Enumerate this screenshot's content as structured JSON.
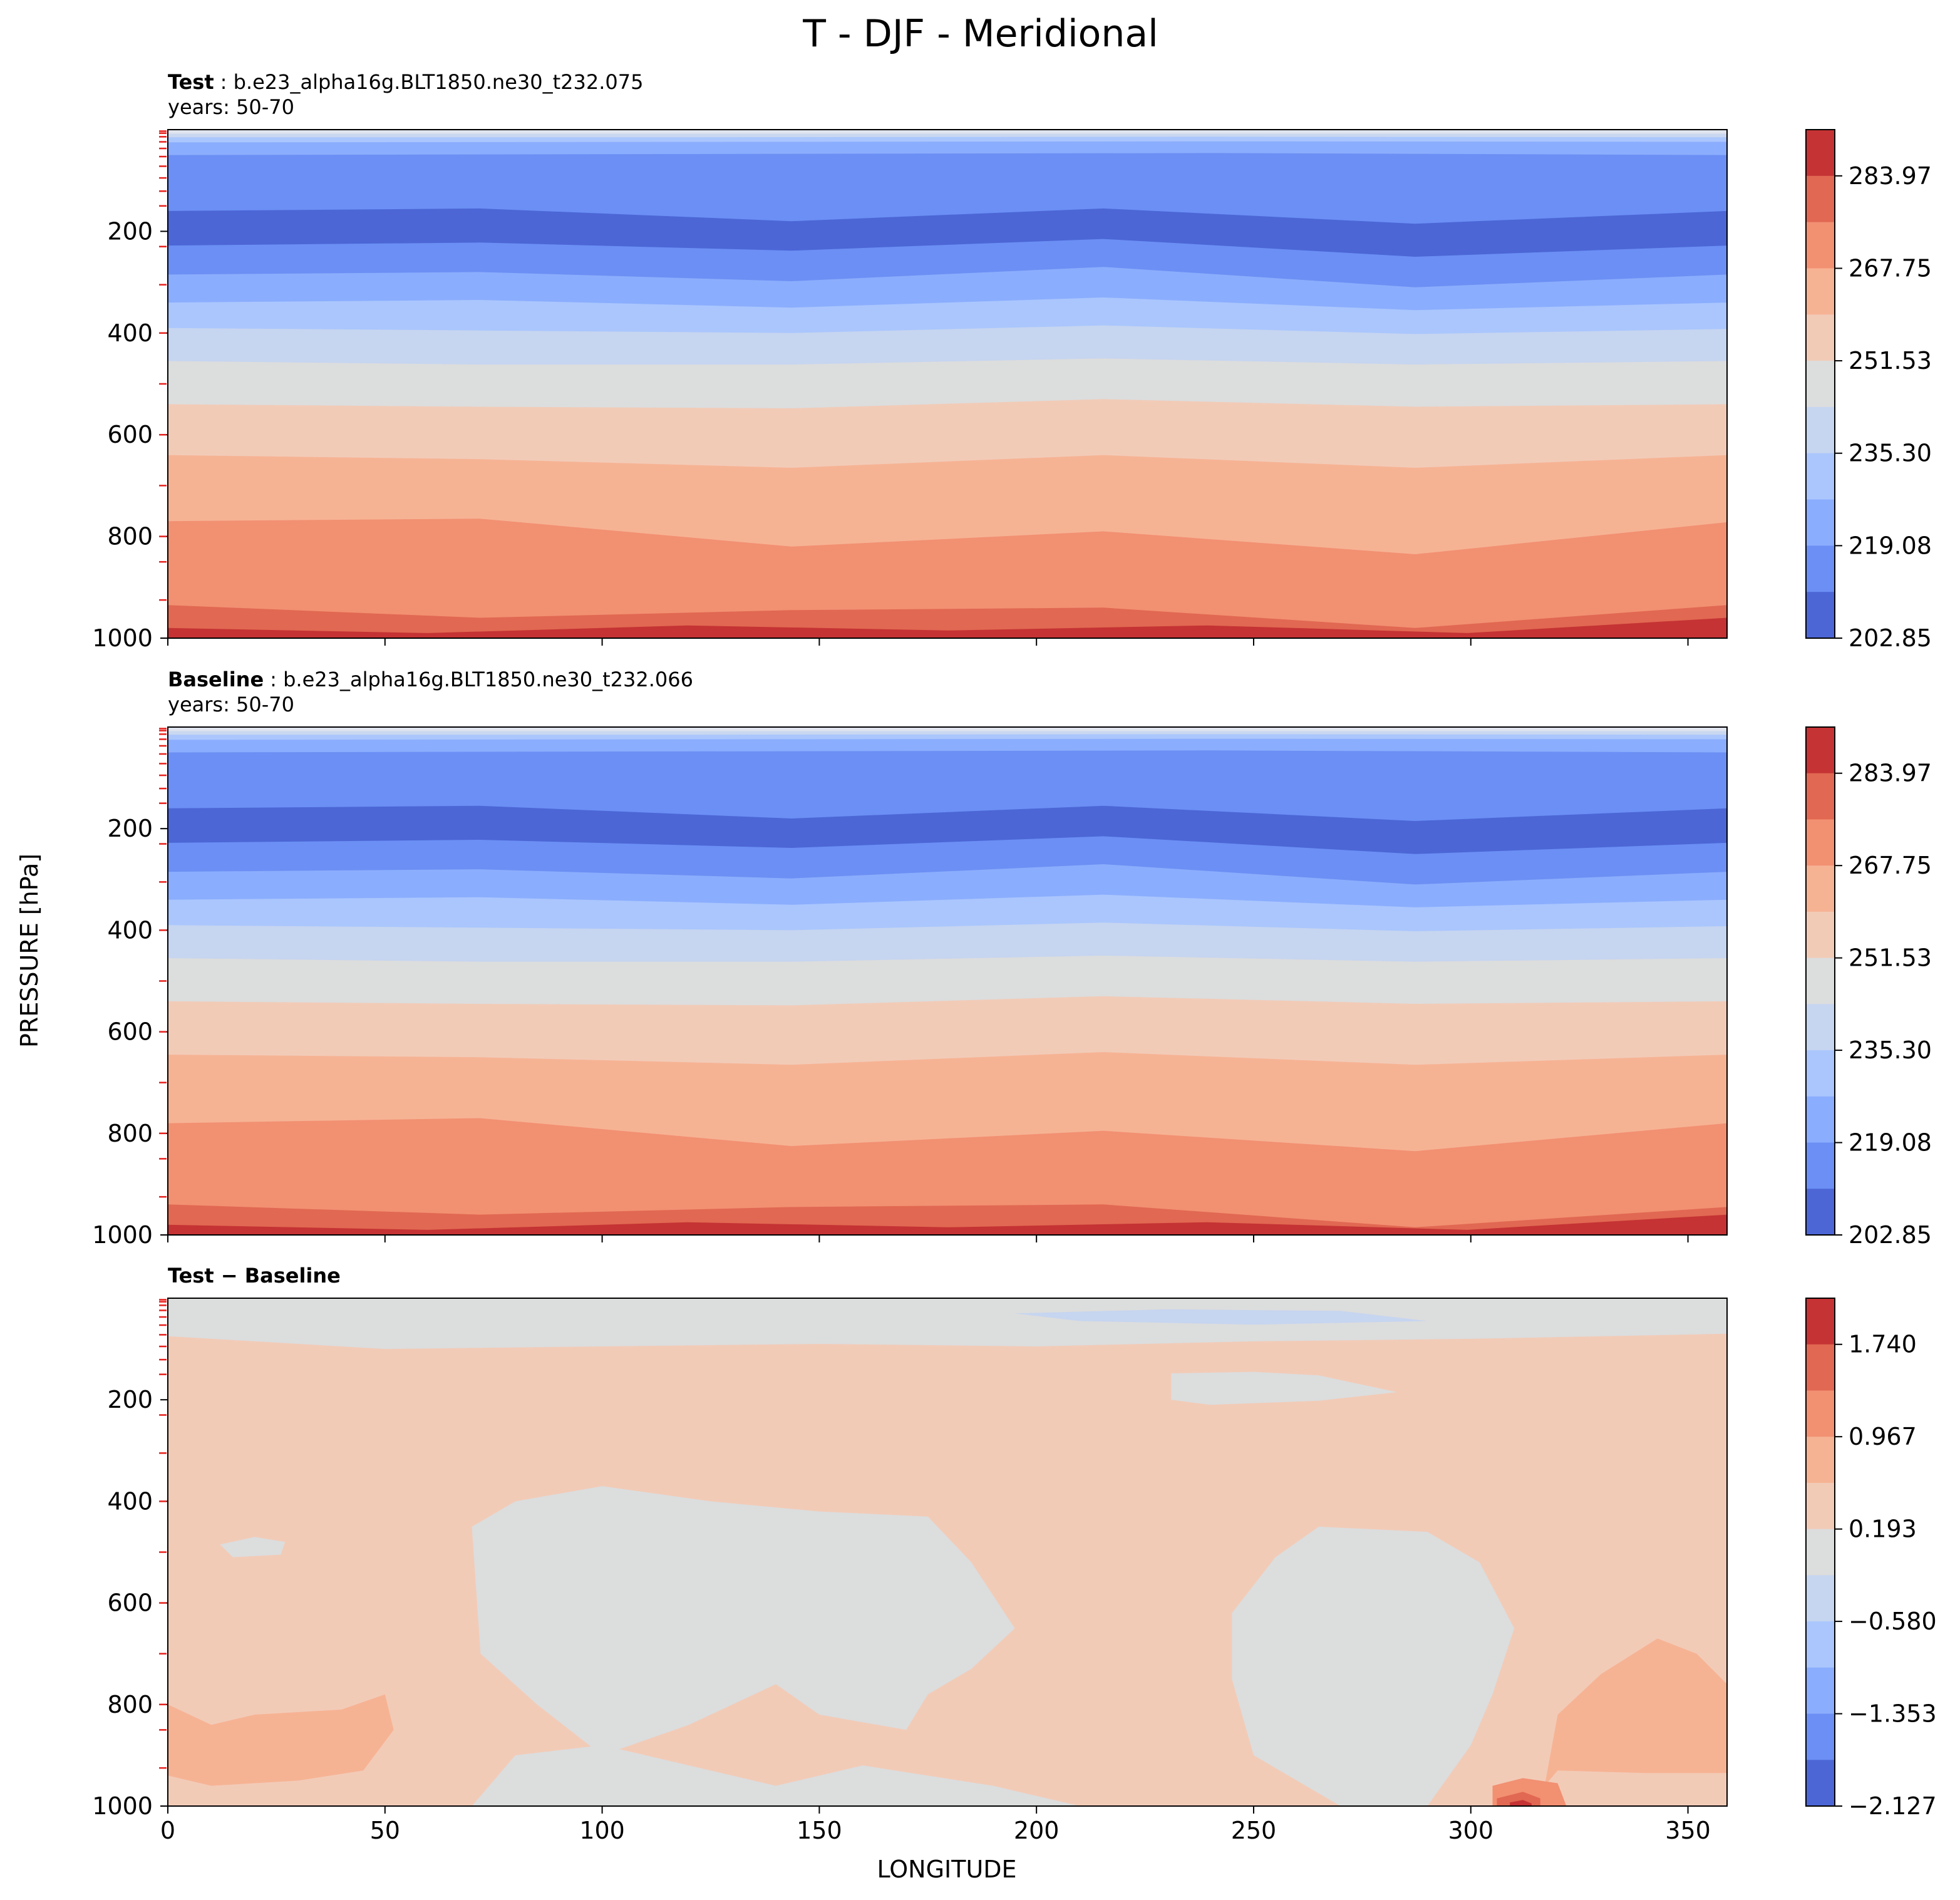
{
  "figure": {
    "title": "T - DJF - Meridional"
  },
  "chart_data": [
    {
      "type": "contour",
      "panel": "test",
      "title_bold": "Test",
      "title_text": ": b.e23_alpha16g.BLT1850.ne30_t232.075",
      "years": "years: 50-70",
      "x_range": [
        0,
        359
      ],
      "y_range": [
        0,
        1000
      ],
      "y_inverted": true,
      "y_ticks": [
        "200",
        "400",
        "600",
        "800",
        "1000"
      ],
      "colorbar_ticks": [
        "283.97",
        "267.75",
        "251.53",
        "235.30",
        "219.08",
        "202.85"
      ],
      "colorbar_colors": [
        "#c53334",
        "#e16852",
        "#f29072",
        "#f6b394",
        "#f2cbb7",
        "#dcdddd",
        "#c6d5f0",
        "#aac6fd",
        "#8badfd",
        "#6b8ff4",
        "#4c66d6"
      ],
      "levels_top_to_bottom": [
        {
          "color": "#c9d7f0",
          "y": [
            8,
            8,
            8,
            8
          ]
        },
        {
          "color": "#aac6fd",
          "y": [
            15,
            15,
            14,
            15
          ]
        },
        {
          "color": "#8badfd",
          "y": [
            25,
            24,
            23,
            24
          ]
        },
        {
          "color": "#6b8ff4",
          "y": [
            50,
            48,
            46,
            50
          ]
        },
        {
          "color": "#4c66d6",
          "y": [
            160,
            155,
            180,
            155,
            185,
            160
          ]
        },
        {
          "color": "#6b8ff4",
          "y": [
            228,
            222,
            238,
            215,
            250,
            228
          ]
        },
        {
          "color": "#8badfd",
          "y": [
            285,
            280,
            298,
            270,
            310,
            285
          ]
        },
        {
          "color": "#aac6fd",
          "y": [
            340,
            335,
            350,
            330,
            355,
            340
          ]
        },
        {
          "color": "#c6d5f0",
          "y": [
            390,
            395,
            400,
            385,
            402,
            392
          ]
        },
        {
          "color": "#dcdddd",
          "y": [
            455,
            462,
            462,
            450,
            462,
            455
          ]
        },
        {
          "color": "#f2cbb7",
          "y": [
            540,
            545,
            548,
            530,
            545,
            540
          ]
        },
        {
          "color": "#f6b394",
          "y": [
            640,
            648,
            665,
            640,
            665,
            640
          ]
        },
        {
          "color": "#f29072",
          "y": [
            770,
            765,
            820,
            790,
            835,
            772
          ]
        },
        {
          "color": "#e16852",
          "y": [
            935,
            960,
            945,
            940,
            980,
            935
          ]
        }
      ]
    },
    {
      "type": "contour",
      "panel": "baseline",
      "title_bold": "Baseline",
      "title_text": ": b.e23_alpha16g.BLT1850.ne30_t232.066",
      "years": "years: 50-70",
      "x_range": [
        0,
        359
      ],
      "y_range": [
        0,
        1000
      ],
      "y_inverted": true,
      "y_ticks": [
        "200",
        "400",
        "600",
        "800",
        "1000"
      ],
      "colorbar_ticks": [
        "283.97",
        "267.75",
        "251.53",
        "235.30",
        "219.08",
        "202.85"
      ],
      "colorbar_colors": [
        "#c53334",
        "#e16852",
        "#f29072",
        "#f6b394",
        "#f2cbb7",
        "#dcdddd",
        "#c6d5f0",
        "#aac6fd",
        "#8badfd",
        "#6b8ff4",
        "#4c66d6"
      ],
      "levels_top_to_bottom": [
        {
          "color": "#c9d7f0",
          "y": [
            8,
            8,
            8,
            8
          ]
        },
        {
          "color": "#aac6fd",
          "y": [
            15,
            15,
            14,
            15
          ]
        },
        {
          "color": "#8badfd",
          "y": [
            25,
            24,
            23,
            24
          ]
        },
        {
          "color": "#6b8ff4",
          "y": [
            50,
            48,
            46,
            50
          ]
        },
        {
          "color": "#4c66d6",
          "y": [
            160,
            155,
            180,
            155,
            185,
            160
          ]
        },
        {
          "color": "#6b8ff4",
          "y": [
            228,
            222,
            238,
            215,
            250,
            228
          ]
        },
        {
          "color": "#8badfd",
          "y": [
            285,
            280,
            298,
            270,
            310,
            285
          ]
        },
        {
          "color": "#aac6fd",
          "y": [
            340,
            335,
            350,
            330,
            355,
            340
          ]
        },
        {
          "color": "#c6d5f0",
          "y": [
            390,
            395,
            400,
            385,
            402,
            392
          ]
        },
        {
          "color": "#dcdddd",
          "y": [
            455,
            462,
            462,
            450,
            462,
            455
          ]
        },
        {
          "color": "#f2cbb7",
          "y": [
            540,
            545,
            548,
            530,
            545,
            540
          ]
        },
        {
          "color": "#f6b394",
          "y": [
            645,
            650,
            665,
            640,
            665,
            645
          ]
        },
        {
          "color": "#f29072",
          "y": [
            780,
            770,
            825,
            795,
            835,
            780
          ]
        },
        {
          "color": "#e16852",
          "y": [
            940,
            960,
            945,
            940,
            985,
            945
          ]
        }
      ]
    },
    {
      "type": "contour",
      "panel": "difference",
      "title_bold": "Test − Baseline",
      "title_text": "",
      "years": "",
      "x_range": [
        0,
        359
      ],
      "y_range": [
        0,
        1000
      ],
      "y_inverted": true,
      "y_ticks": [
        "200",
        "400",
        "600",
        "800",
        "1000"
      ],
      "x_ticks": [
        "0",
        "50",
        "100",
        "150",
        "200",
        "250",
        "300",
        "350"
      ],
      "xlabel": "LONGITUDE",
      "colorbar_ticks": [
        "1.740",
        "0.967",
        "0.193",
        "−0.580",
        "−1.353",
        "−2.127"
      ],
      "colorbar_colors": [
        "#c53334",
        "#e16852",
        "#f29072",
        "#f6b394",
        "#f2cbb7",
        "#dcdddd",
        "#c6d5f0",
        "#aac6fd",
        "#8badfd",
        "#6b8ff4",
        "#4c66d6"
      ],
      "background_level": "#f2cbb7",
      "regions": [
        {
          "color": "#dcdddd",
          "pts": [
            [
              0,
              0
            ],
            [
              359,
              0
            ],
            [
              359,
              70
            ],
            [
              300,
              80
            ],
            [
              250,
              85
            ],
            [
              200,
              95
            ],
            [
              150,
              90
            ],
            [
              100,
              95
            ],
            [
              50,
              100
            ],
            [
              0,
              75
            ]
          ]
        },
        {
          "color": "#c6d5f0",
          "pts": [
            [
              195,
              30
            ],
            [
              230,
              22
            ],
            [
              270,
              25
            ],
            [
              290,
              45
            ],
            [
              250,
              52
            ],
            [
              210,
              45
            ]
          ]
        },
        {
          "color": "#dcdddd",
          "pts": [
            [
              231,
              148
            ],
            [
              250,
              145
            ],
            [
              265,
              152
            ],
            [
              283,
              185
            ],
            [
              265,
              202
            ],
            [
              240,
              210
            ],
            [
              231,
              200
            ]
          ]
        },
        {
          "color": "#dcdddd",
          "pts": [
            [
              12,
              485
            ],
            [
              20,
              470
            ],
            [
              27,
              480
            ],
            [
              26,
              505
            ],
            [
              15,
              510
            ]
          ]
        },
        {
          "color": "#dcdddd",
          "pts": [
            [
              70,
              450
            ],
            [
              80,
              400
            ],
            [
              100,
              370
            ],
            [
              125,
              400
            ],
            [
              150,
              420
            ],
            [
              175,
              430
            ],
            [
              185,
              520
            ],
            [
              195,
              650
            ],
            [
              185,
              730
            ],
            [
              175,
              780
            ],
            [
              170,
              850
            ],
            [
              150,
              820
            ],
            [
              140,
              760
            ],
            [
              120,
              840
            ],
            [
              100,
              900
            ],
            [
              85,
              800
            ],
            [
              72,
              700
            ]
          ]
        },
        {
          "color": "#dcdddd",
          "pts": [
            [
              245,
              620
            ],
            [
              255,
              510
            ],
            [
              265,
              450
            ],
            [
              290,
              460
            ],
            [
              302,
              520
            ],
            [
              310,
              650
            ],
            [
              305,
              780
            ],
            [
              300,
              880
            ],
            [
              290,
              1000
            ],
            [
              270,
              1000
            ],
            [
              250,
              900
            ],
            [
              245,
              750
            ]
          ]
        },
        {
          "color": "#dcdddd",
          "pts": [
            [
              70,
              1000
            ],
            [
              80,
              900
            ],
            [
              100,
              880
            ],
            [
              120,
              920
            ],
            [
              140,
              960
            ],
            [
              160,
              920
            ],
            [
              190,
              960
            ],
            [
              210,
              1000
            ]
          ]
        },
        {
          "color": "#f6b394",
          "pts": [
            [
              0,
              800
            ],
            [
              10,
              840
            ],
            [
              20,
              820
            ],
            [
              40,
              810
            ],
            [
              50,
              780
            ],
            [
              52,
              850
            ],
            [
              45,
              930
            ],
            [
              30,
              950
            ],
            [
              10,
              960
            ],
            [
              0,
              940
            ]
          ]
        },
        {
          "color": "#f6b394",
          "pts": [
            [
              317,
              960
            ],
            [
              320,
              820
            ],
            [
              330,
              740
            ],
            [
              343,
              670
            ],
            [
              352,
              700
            ],
            [
              359,
              760
            ],
            [
              359,
              935
            ],
            [
              340,
              935
            ],
            [
              320,
              930
            ]
          ]
        },
        {
          "color": "#f29072",
          "pts": [
            [
              305,
              960
            ],
            [
              312,
              945
            ],
            [
              320,
              955
            ],
            [
              322,
              1000
            ],
            [
              305,
              1000
            ]
          ]
        },
        {
          "color": "#e16852",
          "pts": [
            [
              306,
              985
            ],
            [
              312,
              972
            ],
            [
              316,
              985
            ],
            [
              316,
              1000
            ],
            [
              306,
              1000
            ]
          ]
        },
        {
          "color": "#c53334",
          "pts": [
            [
              309,
              993
            ],
            [
              312,
              988
            ],
            [
              314,
              995
            ],
            [
              314,
              1000
            ],
            [
              309,
              1000
            ]
          ]
        }
      ]
    }
  ],
  "shared": {
    "ylabel": "PRESSURE [hPa]",
    "model_level_marks_hpa": [
      3,
      7,
      14,
      24,
      37,
      53,
      72,
      95,
      121,
      150,
      230,
      305,
      400,
      500,
      600,
      700,
      800,
      850,
      925
    ]
  }
}
